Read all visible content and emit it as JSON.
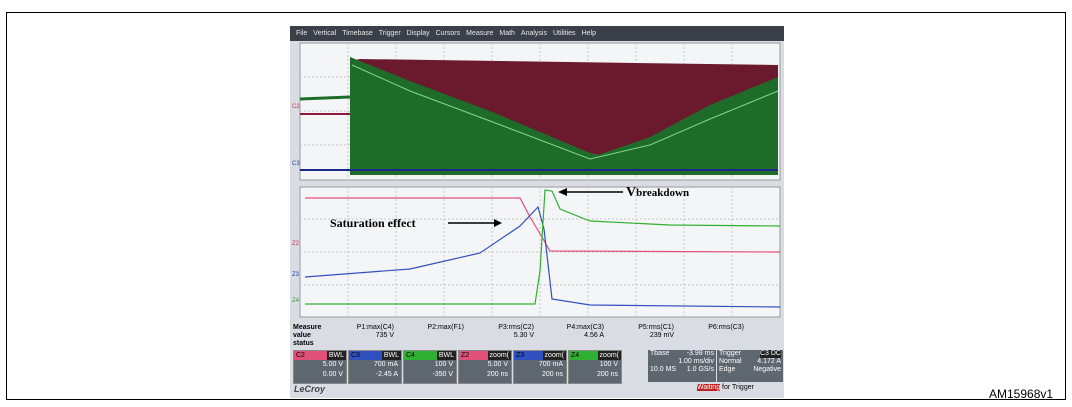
{
  "menu": [
    "File",
    "Vertical",
    "Timebase",
    "Trigger",
    "Display",
    "Cursors",
    "Measure",
    "Math",
    "Analysis",
    "Utilities",
    "Help"
  ],
  "upper_trace_labels": [
    "C2",
    "C3"
  ],
  "lower_trace_labels": [
    "Z2",
    "Z3",
    "Z4"
  ],
  "annotations": {
    "saturation": "Saturation effect",
    "breakdown_v": "V",
    "breakdown_sub": "breakdown"
  },
  "measure": {
    "row_labels": [
      "Measure",
      "value",
      "status"
    ],
    "params": [
      {
        "name": "P1:max(C4)",
        "value": "735 V"
      },
      {
        "name": "P2:max(F1)",
        "value": ""
      },
      {
        "name": "P3:rms(C2)",
        "value": "5.30 V"
      },
      {
        "name": "P4:max(C3)",
        "value": "4.56 A"
      },
      {
        "name": "P5:rms(C1)",
        "value": "239 mV"
      },
      {
        "name": "P6:rms(C3)",
        "value": ""
      }
    ]
  },
  "channels": [
    {
      "name": "C2",
      "tag": "BWL",
      "line1": "5.00 V",
      "line2": "0.00 V"
    },
    {
      "name": "C3",
      "tag": "BWL",
      "line1": "700 mA",
      "line2": "-2.45 A"
    },
    {
      "name": "C4",
      "tag": "BWL",
      "line1": "100 V",
      "line2": "-350 V"
    },
    {
      "name": "Z2",
      "tag": "zoom(",
      "line1": "5.00 V",
      "line2": "200 ns"
    },
    {
      "name": "Z3",
      "tag": "zoom(",
      "line1": "700 mA",
      "line2": "200 ns"
    },
    {
      "name": "Z4",
      "tag": "zoom(",
      "line1": "100 V",
      "line2": "200 ns"
    }
  ],
  "timebase": {
    "label": "Tbase",
    "offset": "-3.98 ms",
    "div": "1.00 ms/div",
    "samples": "10.0 MS",
    "rate": "1.0 GS/s"
  },
  "trigger": {
    "label": "Trigger",
    "source": "C3 DC",
    "mode": "Normal",
    "level": "4.172 A",
    "type": "Edge",
    "slope": "Negative",
    "status_a": "Waiting",
    "status_b": "for Trigger"
  },
  "brand": "LeCroy",
  "figure_id": "AM15968v1"
}
